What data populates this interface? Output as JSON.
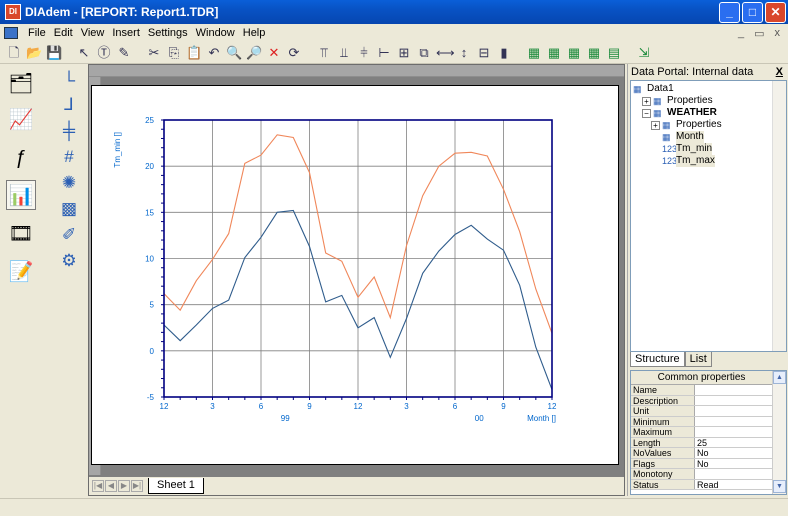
{
  "window": {
    "title": "DIAdem - [REPORT:   Report1.TDR]"
  },
  "menu": [
    "File",
    "Edit",
    "View",
    "Insert",
    "Settings",
    "Window",
    "Help"
  ],
  "mdi_controls": [
    "_",
    "▭",
    "x"
  ],
  "sheet": {
    "tab_label": "Sheet 1"
  },
  "portal": {
    "title": "Data Portal: Internal data",
    "close": "X",
    "tree": [
      {
        "label": "Data1",
        "indent": 0,
        "icon": "root-icon"
      },
      {
        "label": "Properties",
        "indent": 1,
        "expander": "+",
        "icon": "properties-icon"
      },
      {
        "label": "WEATHER",
        "indent": 1,
        "expander": "−",
        "icon": "group-icon",
        "bold": true
      },
      {
        "label": "Properties",
        "indent": 2,
        "expander": "+",
        "icon": "properties-icon"
      },
      {
        "label": "Month",
        "indent": 2,
        "icon": "time-channel-icon",
        "highlight": true
      },
      {
        "label": "Tm_min",
        "indent": 2,
        "icon": "numeric-channel-icon",
        "glyph": "123",
        "highlight": true
      },
      {
        "label": "Tm_max",
        "indent": 2,
        "icon": "numeric-channel-icon",
        "glyph": "123",
        "highlight": true
      }
    ],
    "tabs": [
      "Structure",
      "List"
    ],
    "properties_title": "Common properties",
    "properties": [
      {
        "key": "Name",
        "value": ""
      },
      {
        "key": "Description",
        "value": ""
      },
      {
        "key": "Unit",
        "value": ""
      },
      {
        "key": "Minimum",
        "value": ""
      },
      {
        "key": "Maximum",
        "value": ""
      },
      {
        "key": "Length",
        "value": "25"
      },
      {
        "key": "NoValues",
        "value": "No"
      },
      {
        "key": "Flags",
        "value": "No"
      },
      {
        "key": "Monotony",
        "value": ""
      },
      {
        "key": "Status",
        "value": "Read"
      }
    ]
  },
  "chart_data": {
    "type": "line",
    "ylabel": "Tm_min []",
    "xlabel": "Month []",
    "ylim": [
      -5,
      25
    ],
    "y_ticks": [
      -5,
      0,
      5,
      10,
      15,
      20,
      25
    ],
    "x_tick_labels": [
      "12",
      "3",
      "6",
      "9",
      "12",
      "3",
      "6",
      "9",
      "12"
    ],
    "x_year_labels": [
      "99",
      "00"
    ],
    "grid": true,
    "x": [
      0,
      1,
      2,
      3,
      4,
      5,
      6,
      7,
      8,
      9,
      10,
      11,
      12,
      13,
      14,
      15,
      16,
      17,
      18,
      19,
      20,
      21,
      22,
      23,
      24
    ],
    "series": [
      {
        "color": "#f0875a",
        "values": [
          6.2,
          4.4,
          7.6,
          9.9,
          12.7,
          20.3,
          21.2,
          23.4,
          23.1,
          19.3,
          10.6,
          9.7,
          5.8,
          8.0,
          3.6,
          11.4,
          16.8,
          20.0,
          21.4,
          21.5,
          21.1,
          17.5,
          12.9,
          6.7,
          1.9
        ]
      },
      {
        "color": "#2f5c8c",
        "values": [
          2.8,
          1.1,
          2.8,
          4.6,
          5.5,
          10.1,
          12.3,
          15.0,
          15.2,
          11.3,
          5.3,
          6.0,
          2.5,
          3.6,
          -0.7,
          3.5,
          8.4,
          10.8,
          12.6,
          13.6,
          12.1,
          10.9,
          7.1,
          0.4,
          -4.2
        ]
      }
    ],
    "colors": {
      "axis": "#000080",
      "grid": "#808080",
      "tick_text": "#0066cc"
    }
  }
}
